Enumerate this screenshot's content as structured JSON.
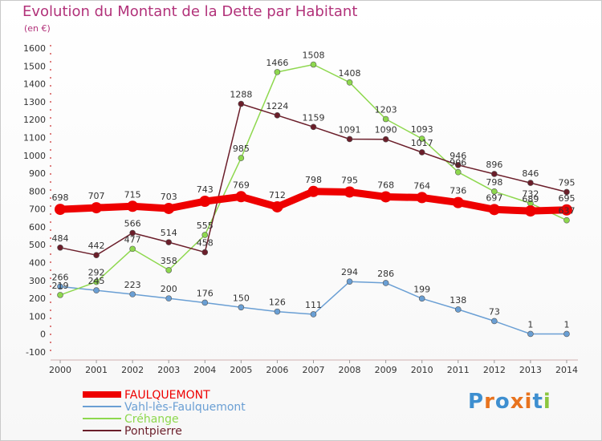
{
  "title": "Evolution du Montant de la Dette par Habitant",
  "subtitle": "(en €)",
  "logo": {
    "text": "Proxiti",
    "letter_colors": [
      "#3e8fd0",
      "#e8731e",
      "#3e8fd0",
      "#e8731e",
      "#e8731e",
      "#3e8fd0",
      "#8cc63f"
    ]
  },
  "chart_data": {
    "type": "line",
    "x": [
      "2000",
      "2001",
      "2002",
      "2003",
      "2004",
      "2005",
      "2006",
      "2007",
      "2008",
      "2009",
      "2010",
      "2011",
      "2012",
      "2013",
      "2014"
    ],
    "ylim": [
      -100,
      1600
    ],
    "yticks": [
      "-100",
      "0",
      "100",
      "200",
      "300",
      "400",
      "500",
      "600",
      "700",
      "800",
      "900",
      "1000",
      "1100",
      "1200",
      "1300",
      "1400",
      "1500",
      "1600"
    ],
    "grid": false,
    "legend_position": "bottom-left",
    "series": [
      {
        "name": "FAULQUEMONT",
        "color": "#ee0000",
        "values": [
          698,
          707,
          715,
          703,
          743,
          769,
          712,
          798,
          795,
          768,
          764,
          736,
          697,
          689,
          695
        ]
      },
      {
        "name": "Vahl-lès-Faulquemont",
        "color": "#6a9fd4",
        "values": [
          266,
          245,
          223,
          200,
          176,
          150,
          126,
          111,
          294,
          286,
          199,
          138,
          73,
          1,
          1
        ]
      },
      {
        "name": "Créhange",
        "color": "#8ed84e",
        "values": [
          219,
          292,
          477,
          358,
          555,
          985,
          1466,
          1508,
          1408,
          1203,
          1093,
          906,
          798,
          732,
          637
        ]
      },
      {
        "name": "Pontpierre",
        "color": "#6b1e2a",
        "values": [
          484,
          442,
          566,
          514,
          458,
          1288,
          1224,
          1159,
          1091,
          1090,
          1017,
          946,
          896,
          846,
          795
        ]
      }
    ]
  }
}
